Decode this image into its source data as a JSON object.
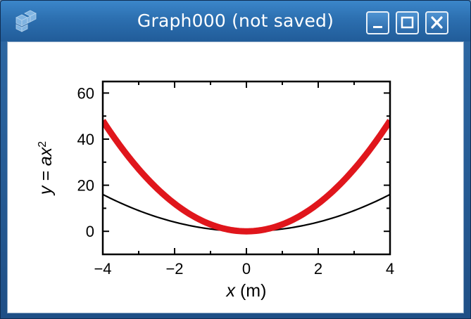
{
  "window": {
    "title": "Graph000 (not saved)",
    "icon": "cube-grid-icon",
    "controls": [
      "minimize-icon",
      "maximize-icon",
      "close-icon"
    ],
    "colors": {
      "titlebar": "#2c6fb0",
      "client": "#ffffff"
    }
  },
  "chart_data": {
    "type": "line",
    "xlabel_var": "x",
    "xlabel_unit": " (m)",
    "ylabel_left": "y = a",
    "ylabel_var": "x",
    "ylabel_exp": "2",
    "xlim": [
      -4,
      4
    ],
    "ylim": [
      -10,
      65
    ],
    "xticks": [
      -4,
      -2,
      0,
      2,
      4
    ],
    "xtick_labels": [
      "−4",
      "−2",
      "0",
      "2",
      "4"
    ],
    "yticks": [
      0,
      20,
      40,
      60
    ],
    "ytick_labels": [
      "0",
      "20",
      "40",
      "60"
    ],
    "grid": false,
    "series": [
      {
        "color": "#000000",
        "function": "a*x^2",
        "a": 1,
        "x_range": [
          -4,
          4
        ]
      },
      {
        "color": "#e0161c",
        "function": "a*x^2",
        "a": 3,
        "x_range": [
          -4,
          4
        ]
      }
    ]
  }
}
